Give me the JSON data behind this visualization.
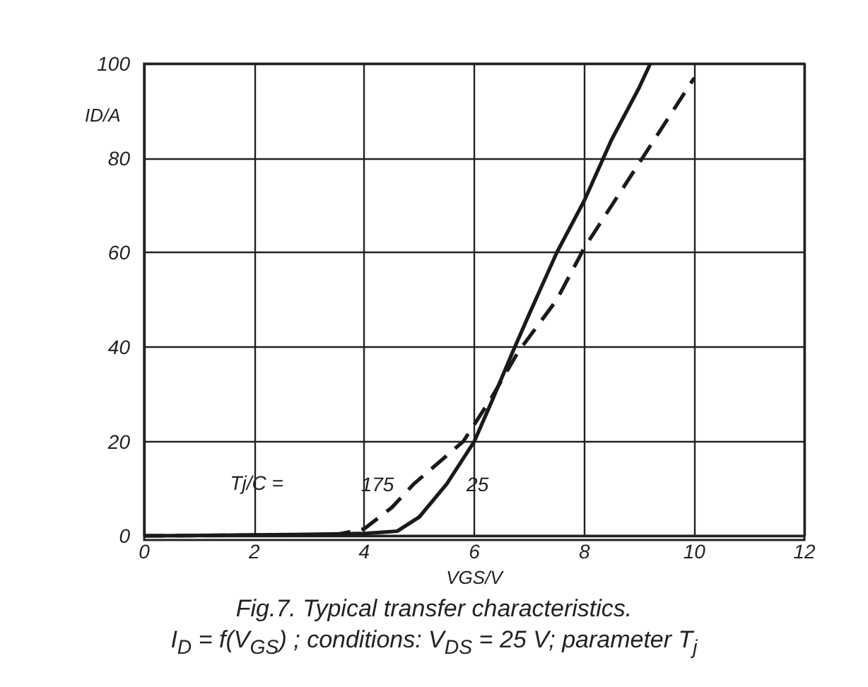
{
  "chart_data": {
    "type": "line",
    "title": "Fig.7.   Typical transfer characteristics.",
    "subtitle": "I$_{D}$ = f(V$_{GS}$) ; conditions: V$_{DS}$ = 25 V; parameter T$_{j}$",
    "xlabel": "VGS/V",
    "ylabel": "ID/A",
    "xlim": [
      0,
      12
    ],
    "xticks": [
      0,
      2,
      4,
      6,
      8,
      10,
      12
    ],
    "ylim": [
      0,
      100
    ],
    "yticks": [
      0,
      20,
      40,
      60,
      80,
      100
    ],
    "grid": true,
    "marker": "none",
    "series": [
      {
        "name": "25",
        "color": "#1a1a1a",
        "line_style": "solid",
        "x": [
          0,
          3,
          4,
          4.6,
          5,
          5.5,
          6,
          6.3,
          6.7,
          7,
          7.5,
          8,
          8.5,
          9,
          9.2
        ],
        "values": [
          0,
          0.3,
          0.5,
          1,
          4,
          11,
          20,
          28,
          39,
          47,
          60,
          71,
          84,
          95,
          100
        ]
      },
      {
        "name": "175",
        "color": "#1a1a1a",
        "line_style": "dashed",
        "x": [
          0,
          3.5,
          4,
          4.5,
          4.9,
          5.3,
          5.8,
          6.3,
          6.8,
          7.5,
          8,
          9,
          10
        ],
        "values": [
          0,
          0.3,
          1.5,
          6,
          11,
          15,
          20,
          29,
          39,
          50,
          61,
          79,
          97
        ]
      }
    ],
    "annotations": [
      "Tj/C ="
    ]
  }
}
